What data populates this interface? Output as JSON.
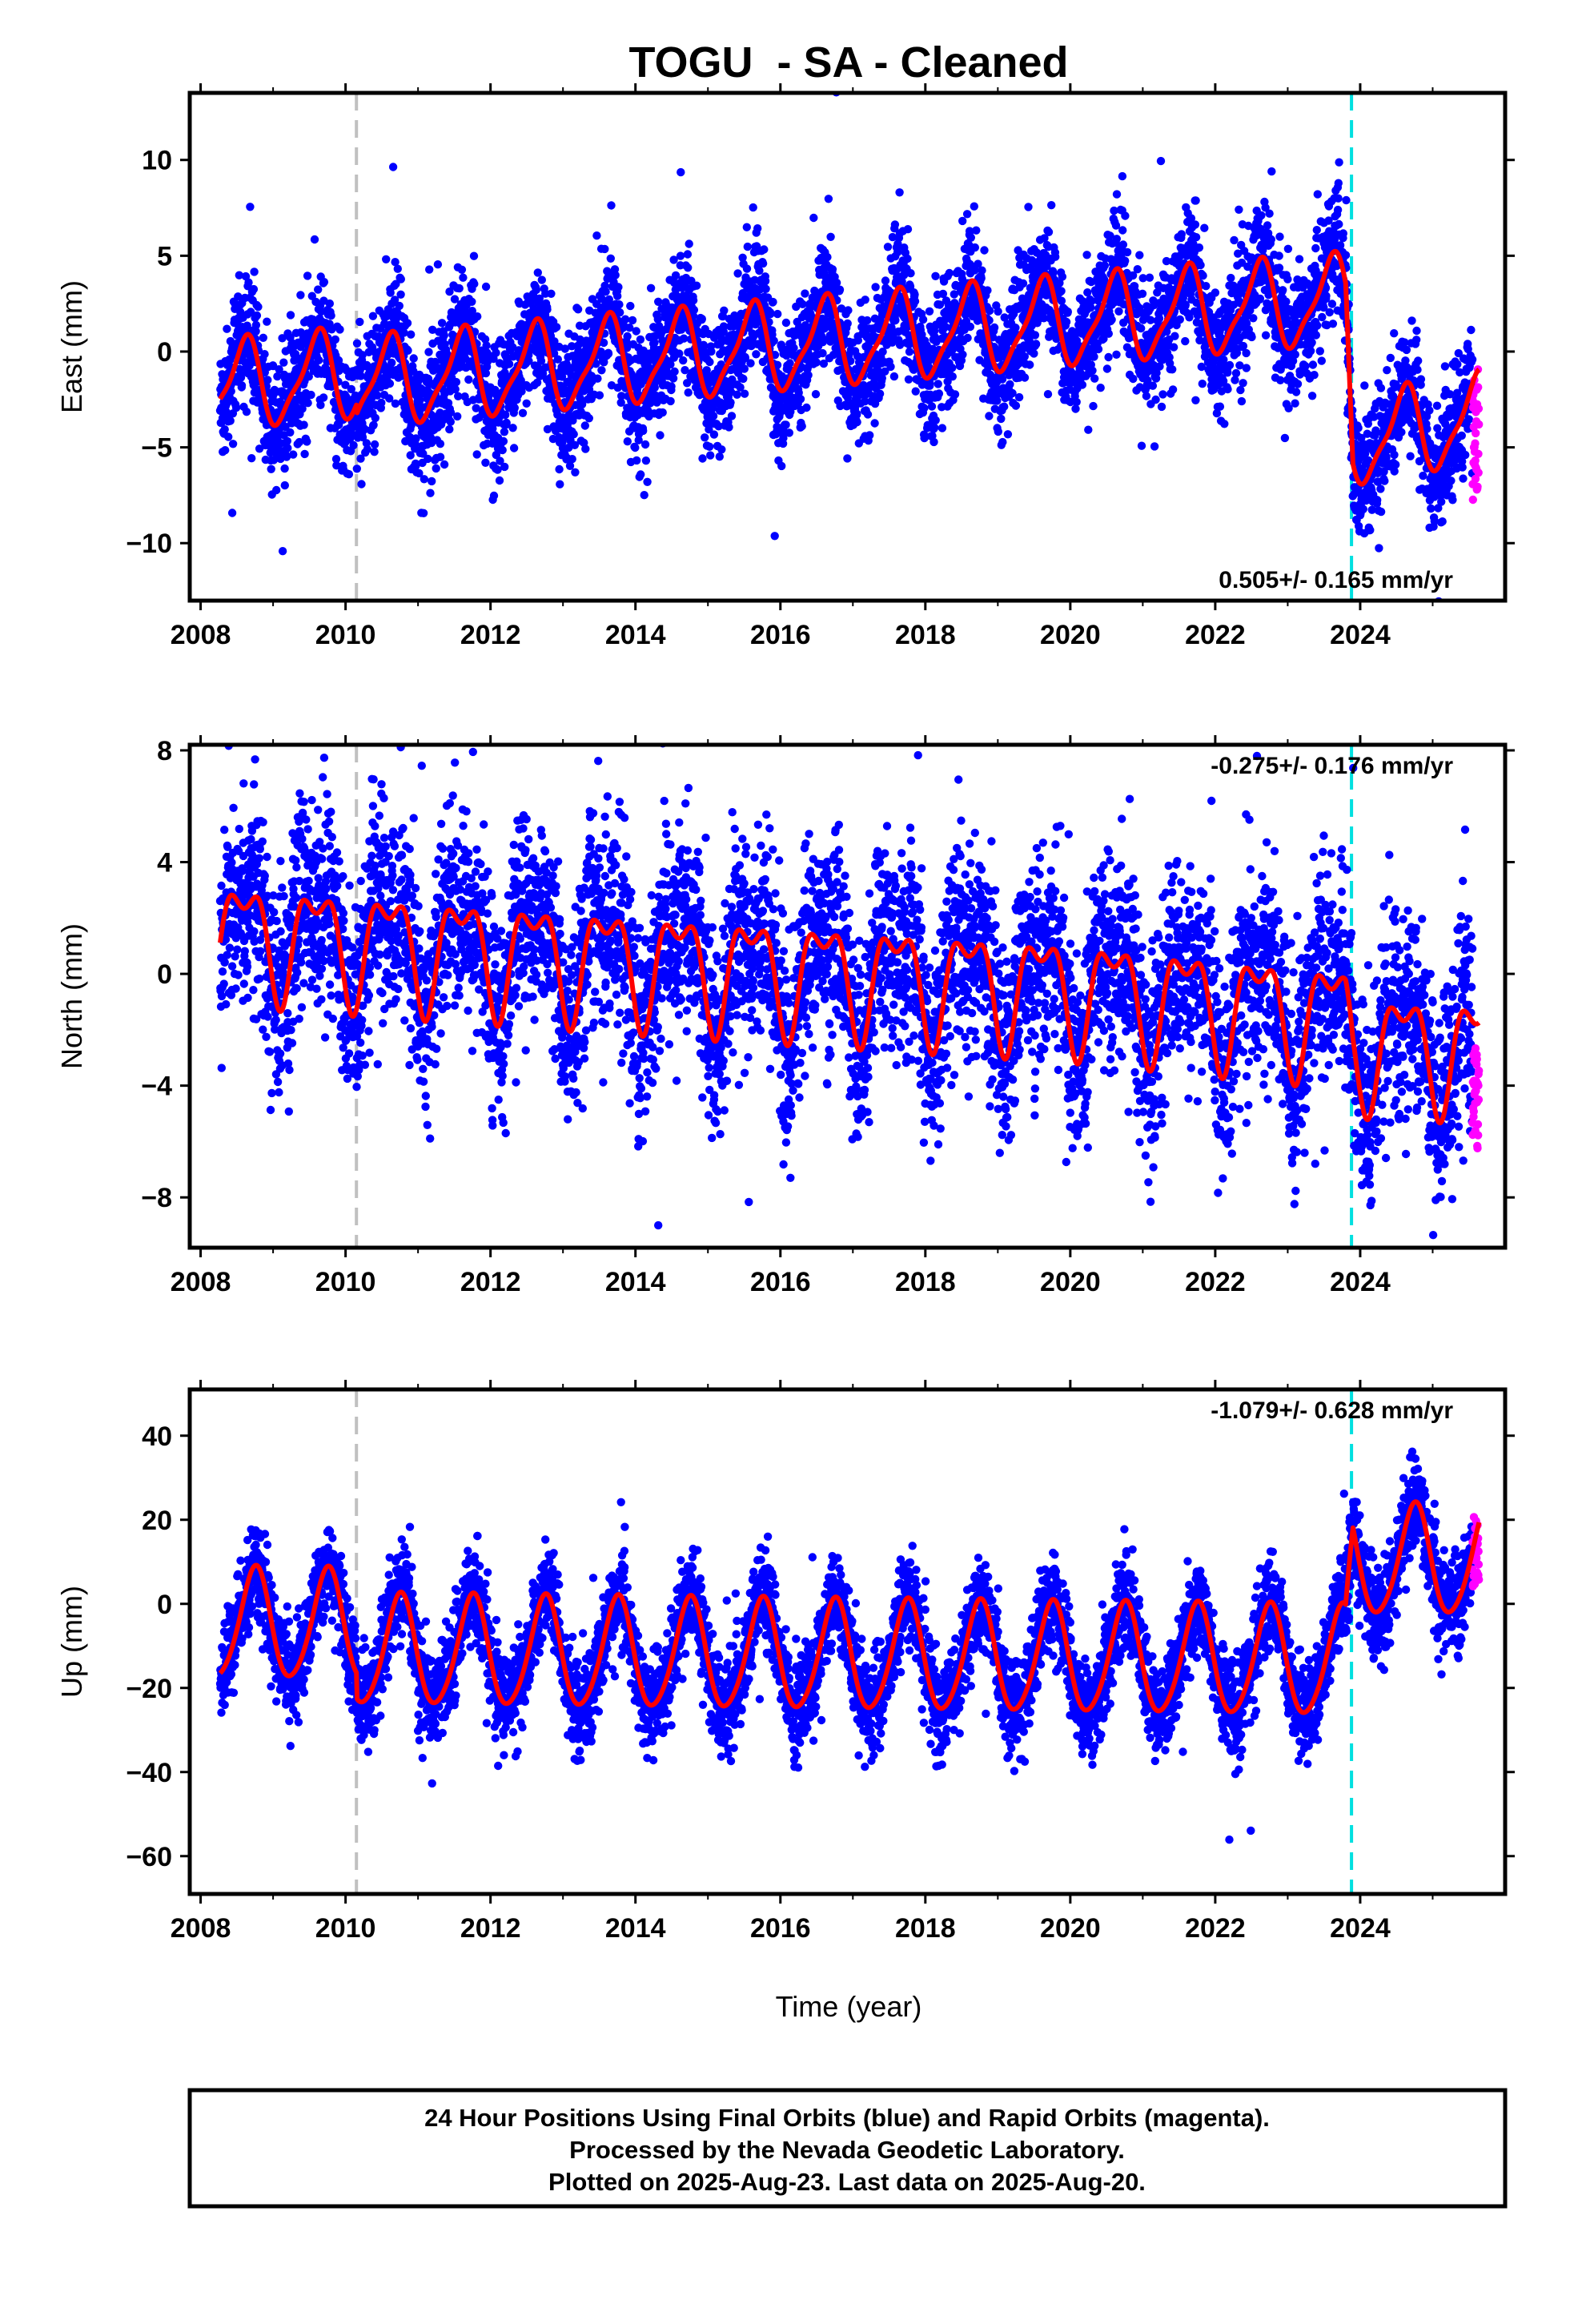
{
  "chart_data": {
    "title": "TOGU  - SA - Cleaned",
    "xlabel": "Time (year)",
    "xlim": [
      2007.85,
      2026.0
    ],
    "x_ticks": [
      "2008",
      "2010",
      "2012",
      "2014",
      "2016",
      "2018",
      "2020",
      "2022",
      "2024"
    ],
    "grid": false,
    "colors": {
      "final": "#0000ff",
      "rapid": "#ff00ff",
      "model": "#ff0000",
      "equipment_change": "#c0c0c0",
      "earthquake": "#00e0e0"
    },
    "events": [
      {
        "type": "equipment_change",
        "x": 2010.15,
        "color": "#c0c0c0"
      },
      {
        "type": "earthquake",
        "x": 2023.88,
        "color": "#00e0e0"
      }
    ],
    "data_start": 2008.27,
    "final_end": 2025.55,
    "data_end": 2025.64,
    "panels": [
      {
        "type": "scatter",
        "ylabel": "East (mm)",
        "ylim": [
          -13,
          13.5
        ],
        "y_ticks": [
          -10,
          -5,
          0,
          5,
          10
        ],
        "y_tick_labels": [
          "−10",
          "−5",
          "0",
          "5",
          "10"
        ],
        "rate_text": "0.505+/- 0.165 mm/yr",
        "rate_position": "bottom-right",
        "model": {
          "trend": [
            [
              2008.27,
              -1.8
            ],
            [
              2019.8,
              2.0
            ],
            [
              2023.8,
              3.2
            ],
            [
              2023.9,
              -4.2
            ],
            [
              2025.64,
              -3.0
            ]
          ],
          "annual_amplitude": 2.2,
          "annual_peak": 0.6,
          "semiannual_amplitude": 0.6,
          "semiannual_peak": 0.2,
          "steps": [
            {
              "x": 2010.15,
              "dy": -0.5
            }
          ]
        },
        "scatter_sigma": 1.6,
        "rapid_range": [
          -7.8,
          -0.7
        ]
      },
      {
        "type": "scatter",
        "ylabel": "North (mm)",
        "ylim": [
          -9.8,
          8.2
        ],
        "y_ticks": [
          -8,
          -4,
          0,
          4,
          8
        ],
        "y_tick_labels": [
          "−8",
          "−4",
          "0",
          "4",
          "8"
        ],
        "rate_text": "-0.275+/- 0.176 mm/yr",
        "rate_position": "top-right",
        "model": {
          "trend": [
            [
              2008.27,
              1.5
            ],
            [
              2015.0,
              0.3
            ],
            [
              2020.0,
              -0.5
            ],
            [
              2023.8,
              -1.5
            ],
            [
              2023.9,
              -2.5
            ],
            [
              2025.64,
              -2.7
            ]
          ],
          "annual_amplitude": 1.8,
          "annual_peak": 0.6,
          "semiannual_amplitude": 0.9,
          "semiannual_peak": 0.35,
          "steps": []
        },
        "scatter_sigma": 1.8,
        "rapid_range": [
          -6.3,
          -2.5
        ]
      },
      {
        "type": "scatter",
        "ylabel": "Up (mm)",
        "ylim": [
          -69,
          51
        ],
        "y_ticks": [
          -60,
          -40,
          -20,
          0,
          20,
          40
        ],
        "y_tick_labels": [
          "−60",
          "−40",
          "−20",
          "0",
          "20",
          "40"
        ],
        "rate_text": "-1.079+/- 0.628 mm/yr",
        "rate_position": "top-right",
        "model": {
          "trend": [
            [
              2008.27,
              -5.0
            ],
            [
              2023.8,
              -8.0
            ],
            [
              2023.9,
              16.0
            ],
            [
              2025.64,
              16.0
            ]
          ],
          "annual_amplitude": 13.0,
          "annual_peak": 0.75,
          "semiannual_amplitude": 1.5,
          "semiannual_peak": 0.3,
          "steps": [
            {
              "x": 2010.15,
              "dy": -6.0
            }
          ]
        },
        "scatter_sigma": 5.5,
        "rapid_range": [
          4,
          22
        ]
      }
    ]
  },
  "footer": {
    "line1": "24 Hour Positions Using Final Orbits (blue) and Rapid Orbits (magenta).",
    "line2": "Processed by the Nevada Geodetic Laboratory.",
    "line3": "Plotted on 2025-Aug-23. Last data on 2025-Aug-20."
  }
}
